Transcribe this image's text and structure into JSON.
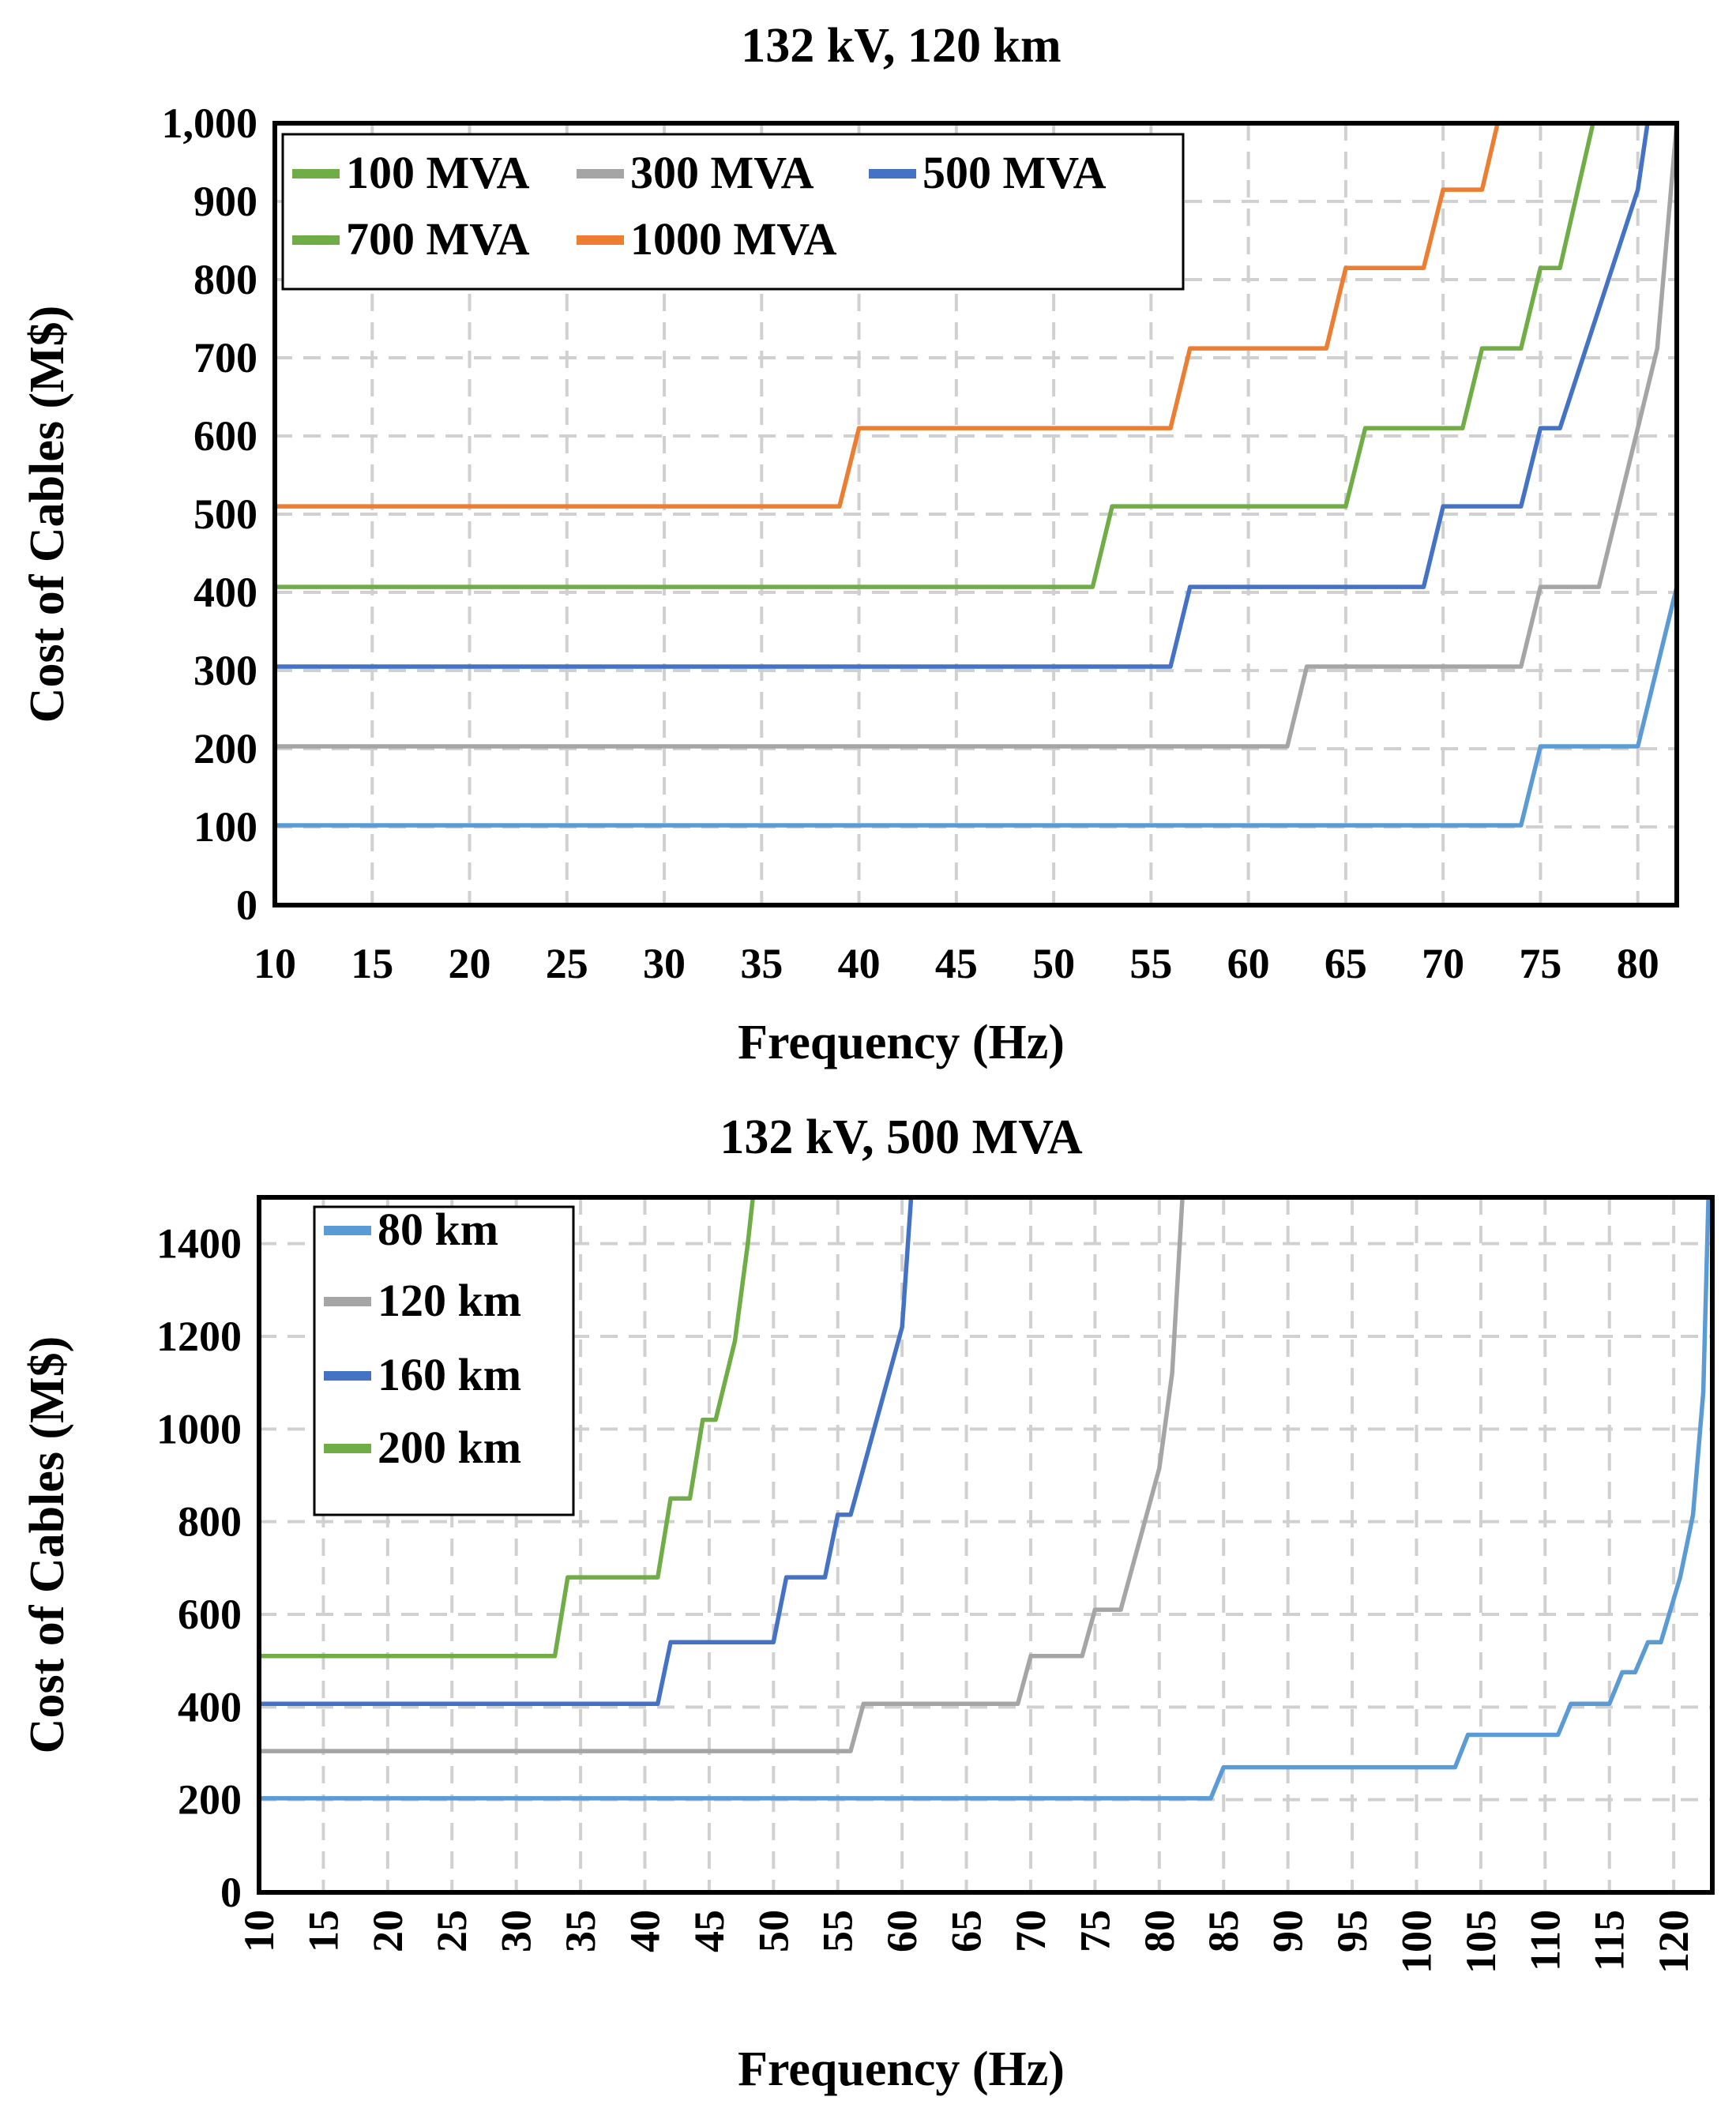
{
  "colors": {
    "light_blue": "#5B9BD5",
    "gray": "#A5A5A5",
    "blue": "#4472C4",
    "green": "#70AD47",
    "orange": "#ED7D31"
  },
  "chart_data": [
    {
      "type": "line",
      "title": "132 kV, 120 km",
      "xlabel": "Frequency (Hz)",
      "ylabel": "Cost of Cables (M$)",
      "xlim": [
        10,
        82
      ],
      "ylim": [
        0,
        1000
      ],
      "xticks": [
        10,
        15,
        20,
        25,
        30,
        35,
        40,
        45,
        50,
        55,
        60,
        65,
        70,
        75,
        80
      ],
      "yticks": [
        0,
        100,
        200,
        300,
        400,
        500,
        600,
        700,
        800,
        900,
        1000
      ],
      "ytick_labels": [
        "0",
        "100",
        "200",
        "300",
        "400",
        "500",
        "600",
        "700",
        "800",
        "900",
        "1,000"
      ],
      "xtick_rotation": "horizontal",
      "grid": true,
      "legend_position": "top-left",
      "series": [
        {
          "name": "100 MVA",
          "color": "#5B9BD5",
          "legend_color": "#70AD47",
          "x": [
            10,
            74,
            75,
            80,
            82
          ],
          "y": [
            102,
            102,
            203,
            203,
            407
          ]
        },
        {
          "name": "300 MVA",
          "color": "#A5A5A5",
          "legend_color": "#A5A5A5",
          "x": [
            10,
            62,
            63,
            74,
            75,
            78,
            80,
            81,
            82
          ],
          "y": [
            203,
            203,
            305,
            305,
            407,
            407,
            610,
            712,
            1000
          ]
        },
        {
          "name": "500 MVA",
          "color": "#4472C4",
          "legend_color": "#4472C4",
          "x": [
            10,
            56,
            57,
            69,
            70,
            74,
            75,
            76,
            80,
            80.5
          ],
          "y": [
            305,
            305,
            407,
            407,
            510,
            510,
            610,
            610,
            915,
            1000
          ]
        },
        {
          "name": "700 MVA",
          "color": "#70AD47",
          "legend_color": "#70AD47",
          "x": [
            10,
            52,
            53,
            65,
            66,
            71,
            72,
            74,
            75,
            76,
            77.7
          ],
          "y": [
            407,
            407,
            510,
            510,
            610,
            610,
            712,
            712,
            815,
            815,
            1000
          ]
        },
        {
          "name": "1000 MVA",
          "color": "#ED7D31",
          "legend_color": "#ED7D31",
          "x": [
            10,
            39,
            40,
            56,
            57,
            64,
            65,
            69,
            70,
            72,
            72.8
          ],
          "y": [
            510,
            510,
            610,
            610,
            712,
            712,
            815,
            815,
            915,
            915,
            1000
          ]
        }
      ]
    },
    {
      "type": "line",
      "title": "132 kV, 500 MVA",
      "xlabel": "Frequency (Hz)",
      "ylabel": "Cost of Cables (M$)",
      "xlim": [
        10,
        123
      ],
      "ylim": [
        0,
        1500
      ],
      "xticks": [
        10,
        15,
        20,
        25,
        30,
        35,
        40,
        45,
        50,
        55,
        60,
        65,
        70,
        75,
        80,
        85,
        90,
        95,
        100,
        105,
        110,
        115,
        120
      ],
      "yticks": [
        0,
        200,
        400,
        600,
        800,
        1000,
        1200,
        1400
      ],
      "ytick_labels": [
        "0",
        "200",
        "400",
        "600",
        "800",
        "1000",
        "1200",
        "1400"
      ],
      "xtick_rotation": "vertical",
      "grid": true,
      "legend_position": "top-left",
      "series": [
        {
          "name": "80 km",
          "color": "#5B9BD5",
          "legend_color": "#5B9BD5",
          "x": [
            10,
            84,
            85,
            103,
            104,
            111,
            112,
            115,
            116,
            117,
            118,
            119,
            120.5,
            121.5,
            122.3,
            122.7,
            123
          ],
          "y": [
            203,
            203,
            270,
            270,
            340,
            340,
            407,
            407,
            475,
            475,
            540,
            540,
            680,
            815,
            1080,
            1500,
            1500
          ]
        },
        {
          "name": "120 km",
          "color": "#A5A5A5",
          "legend_color": "#A5A5A5",
          "x": [
            10,
            56,
            57,
            69,
            70,
            74,
            75,
            77,
            80,
            81,
            81.8
          ],
          "y": [
            305,
            305,
            407,
            407,
            510,
            510,
            610,
            610,
            915,
            1120,
            1500
          ]
        },
        {
          "name": "160 km",
          "color": "#4472C4",
          "legend_color": "#4472C4",
          "x": [
            10,
            41,
            42,
            50,
            51,
            54,
            55,
            56,
            60,
            60.7
          ],
          "y": [
            407,
            407,
            540,
            540,
            680,
            680,
            815,
            815,
            1220,
            1500
          ]
        },
        {
          "name": "200 km",
          "color": "#70AD47",
          "legend_color": "#70AD47",
          "x": [
            10,
            33,
            34,
            41,
            42,
            43.5,
            44.5,
            45.5,
            47,
            48,
            48.4
          ],
          "y": [
            510,
            510,
            680,
            680,
            850,
            850,
            1020,
            1020,
            1190,
            1400,
            1500
          ]
        }
      ]
    }
  ]
}
